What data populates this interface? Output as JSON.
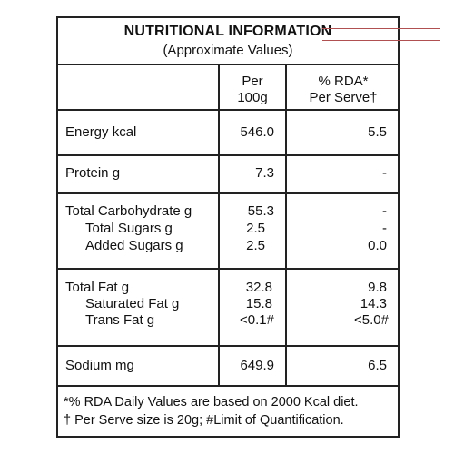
{
  "panel": {
    "title": "NUTRITIONAL INFORMATION",
    "subtitle": "(Approximate Values)"
  },
  "columns": {
    "per_100g_line1": "Per",
    "per_100g_line2": "100g",
    "rda_line1": "% RDA*",
    "rda_line2": "Per Serve†"
  },
  "rows": {
    "energy": {
      "label": "Energy kcal",
      "per100": "546.0",
      "rda": "5.5"
    },
    "protein": {
      "label": "Protein g",
      "per100": "7.3",
      "rda": "-"
    },
    "carb": {
      "label": "Total Carbohydrate g",
      "per100": "55.3",
      "rda": "-"
    },
    "sugars": {
      "label": "Total Sugars g",
      "per100": "2.5",
      "rda": "-"
    },
    "added_sugars": {
      "label": "Added Sugars g",
      "per100": "2.5",
      "rda": "0.0"
    },
    "fat": {
      "label": "Total Fat g",
      "per100": "32.8",
      "rda": "9.8"
    },
    "sat_fat": {
      "label": "Saturated Fat g",
      "per100": "15.8",
      "rda": "14.3"
    },
    "trans_fat": {
      "label": "Trans Fat g",
      "per100": "<0.1#",
      "rda": "<5.0#"
    },
    "sodium": {
      "label": "Sodium mg",
      "per100": "649.9",
      "rda": "6.5"
    }
  },
  "footnotes": {
    "line1": "*% RDA Daily Values are based on 2000 Kcal diet.",
    "line2": "† Per Serve size is 20g; #Limit of Quantification."
  }
}
